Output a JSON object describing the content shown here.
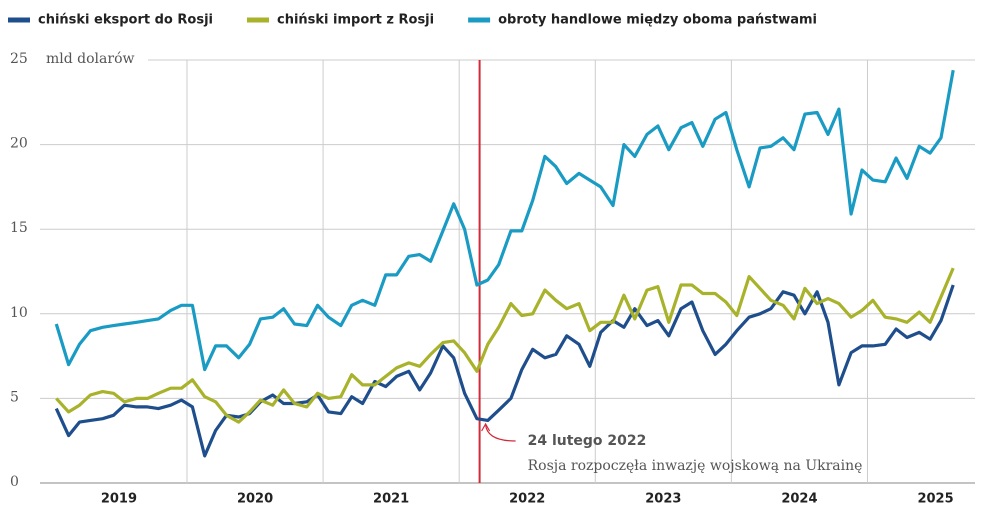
{
  "chart_data": {
    "type": "line",
    "y_label": "mld dolarów",
    "ylim": [
      0,
      25
    ],
    "yticks": [
      0,
      5,
      10,
      15,
      20,
      25
    ],
    "grid": true,
    "xlim": [
      2018.92,
      2025.79
    ],
    "xticks": [
      {
        "value": 2019.5,
        "label": "2019"
      },
      {
        "value": 2020.5,
        "label": "2020"
      },
      {
        "value": 2021.5,
        "label": "2021"
      },
      {
        "value": 2022.5,
        "label": "2022"
      },
      {
        "value": 2023.5,
        "label": "2023"
      },
      {
        "value": 2024.5,
        "label": "2024"
      },
      {
        "value": 2025.5,
        "label": "2025"
      }
    ],
    "legend": "top",
    "x": [
      2019.04,
      2019.13,
      2019.21,
      2019.29,
      2019.38,
      2019.46,
      2019.54,
      2019.63,
      2019.71,
      2019.79,
      2019.88,
      2019.96,
      2020.04,
      2020.13,
      2020.21,
      2020.29,
      2020.38,
      2020.46,
      2020.54,
      2020.63,
      2020.71,
      2020.79,
      2020.88,
      2020.96,
      2021.04,
      2021.13,
      2021.21,
      2021.29,
      2021.38,
      2021.46,
      2021.54,
      2021.63,
      2021.71,
      2021.79,
      2021.88,
      2021.96,
      2022.04,
      2022.13,
      2022.21,
      2022.29,
      2022.38,
      2022.46,
      2022.54,
      2022.63,
      2022.71,
      2022.79,
      2022.88,
      2022.96,
      2023.04,
      2023.13,
      2023.21,
      2023.29,
      2023.38,
      2023.46,
      2023.54,
      2023.63,
      2023.71,
      2023.79,
      2023.88,
      2023.96,
      2024.04,
      2024.13,
      2024.21,
      2024.29,
      2024.38,
      2024.46,
      2024.54,
      2024.63,
      2024.71,
      2024.79,
      2024.88,
      2024.96,
      2025.04,
      2025.13,
      2025.21,
      2025.29,
      2025.38,
      2025.46,
      2025.54,
      2025.63
    ],
    "series": [
      {
        "name": "chiński eksport do Rosji",
        "color": "#1f4e8c",
        "values": [
          4.4,
          2.8,
          3.6,
          3.7,
          3.8,
          4.0,
          4.6,
          4.5,
          4.5,
          4.4,
          4.6,
          4.9,
          4.5,
          1.6,
          3.1,
          4.0,
          3.9,
          4.1,
          4.8,
          5.2,
          4.7,
          4.7,
          4.8,
          5.2,
          4.2,
          4.1,
          5.1,
          4.7,
          6.0,
          5.7,
          6.3,
          6.6,
          5.5,
          6.5,
          8.1,
          7.4,
          5.3,
          3.8,
          3.7,
          4.3,
          5.0,
          6.7,
          7.9,
          7.4,
          7.6,
          8.7,
          8.2,
          6.9,
          8.9,
          9.6,
          9.2,
          10.3,
          9.3,
          9.6,
          8.7,
          10.3,
          10.7,
          9.0,
          7.6,
          8.2,
          9.0,
          9.8,
          10.0,
          10.3,
          11.3,
          11.1,
          10.0,
          11.3,
          9.5,
          5.8,
          7.7,
          8.1,
          8.1,
          8.2,
          9.1,
          8.6,
          8.9,
          8.5,
          9.6,
          11.7
        ]
      },
      {
        "name": "chiński import z Rosji",
        "color": "#a8b22a",
        "values": [
          5.0,
          4.2,
          4.6,
          5.2,
          5.4,
          5.3,
          4.8,
          5.0,
          5.0,
          5.3,
          5.6,
          5.6,
          6.1,
          5.1,
          4.8,
          4.0,
          3.6,
          4.2,
          4.9,
          4.6,
          5.5,
          4.7,
          4.5,
          5.3,
          5.0,
          5.1,
          6.4,
          5.8,
          5.8,
          6.3,
          6.8,
          7.1,
          6.9,
          7.6,
          8.3,
          8.4,
          7.7,
          6.6,
          8.2,
          9.2,
          10.6,
          9.9,
          10.0,
          11.4,
          10.8,
          10.3,
          10.6,
          9.0,
          9.5,
          9.5,
          11.1,
          9.7,
          11.4,
          11.6,
          9.5,
          11.7,
          11.7,
          11.2,
          11.2,
          10.7,
          9.9,
          12.2,
          11.5,
          10.8,
          10.5,
          9.7,
          11.5,
          10.6,
          10.9,
          10.6,
          9.8,
          10.2,
          10.8,
          9.8,
          9.7,
          9.5,
          10.1,
          9.5,
          11.0,
          12.7
        ]
      },
      {
        "name": "obroty handlowe między oboma państwami",
        "color": "#1a9bc4",
        "values": [
          9.4,
          7.0,
          8.2,
          9.0,
          9.2,
          9.3,
          9.4,
          9.5,
          9.6,
          9.7,
          10.2,
          10.5,
          10.5,
          6.7,
          8.1,
          8.1,
          7.4,
          8.2,
          9.7,
          9.8,
          10.3,
          9.4,
          9.3,
          10.5,
          9.8,
          9.3,
          10.5,
          10.8,
          10.5,
          12.3,
          12.3,
          13.4,
          13.5,
          13.1,
          14.9,
          16.5,
          15.0,
          11.7,
          12.0,
          12.9,
          14.9,
          14.9,
          16.7,
          19.3,
          18.7,
          17.7,
          18.3,
          17.9,
          17.5,
          16.4,
          20.0,
          19.3,
          20.6,
          21.1,
          19.7,
          21.0,
          21.3,
          19.9,
          21.5,
          21.9,
          19.7,
          17.5,
          19.8,
          19.9,
          20.4,
          19.7,
          21.8,
          21.9,
          20.6,
          22.1,
          15.9,
          18.5,
          17.9,
          17.8,
          19.2,
          18.0,
          19.9,
          19.5,
          20.4,
          24.4
        ]
      }
    ],
    "annotation": {
      "x": 2022.15,
      "title": "24 lutego 2022",
      "text": "Rosja rozpoczęła inwazję wojskową na Ukrainę",
      "color": "#d12b3a"
    }
  }
}
